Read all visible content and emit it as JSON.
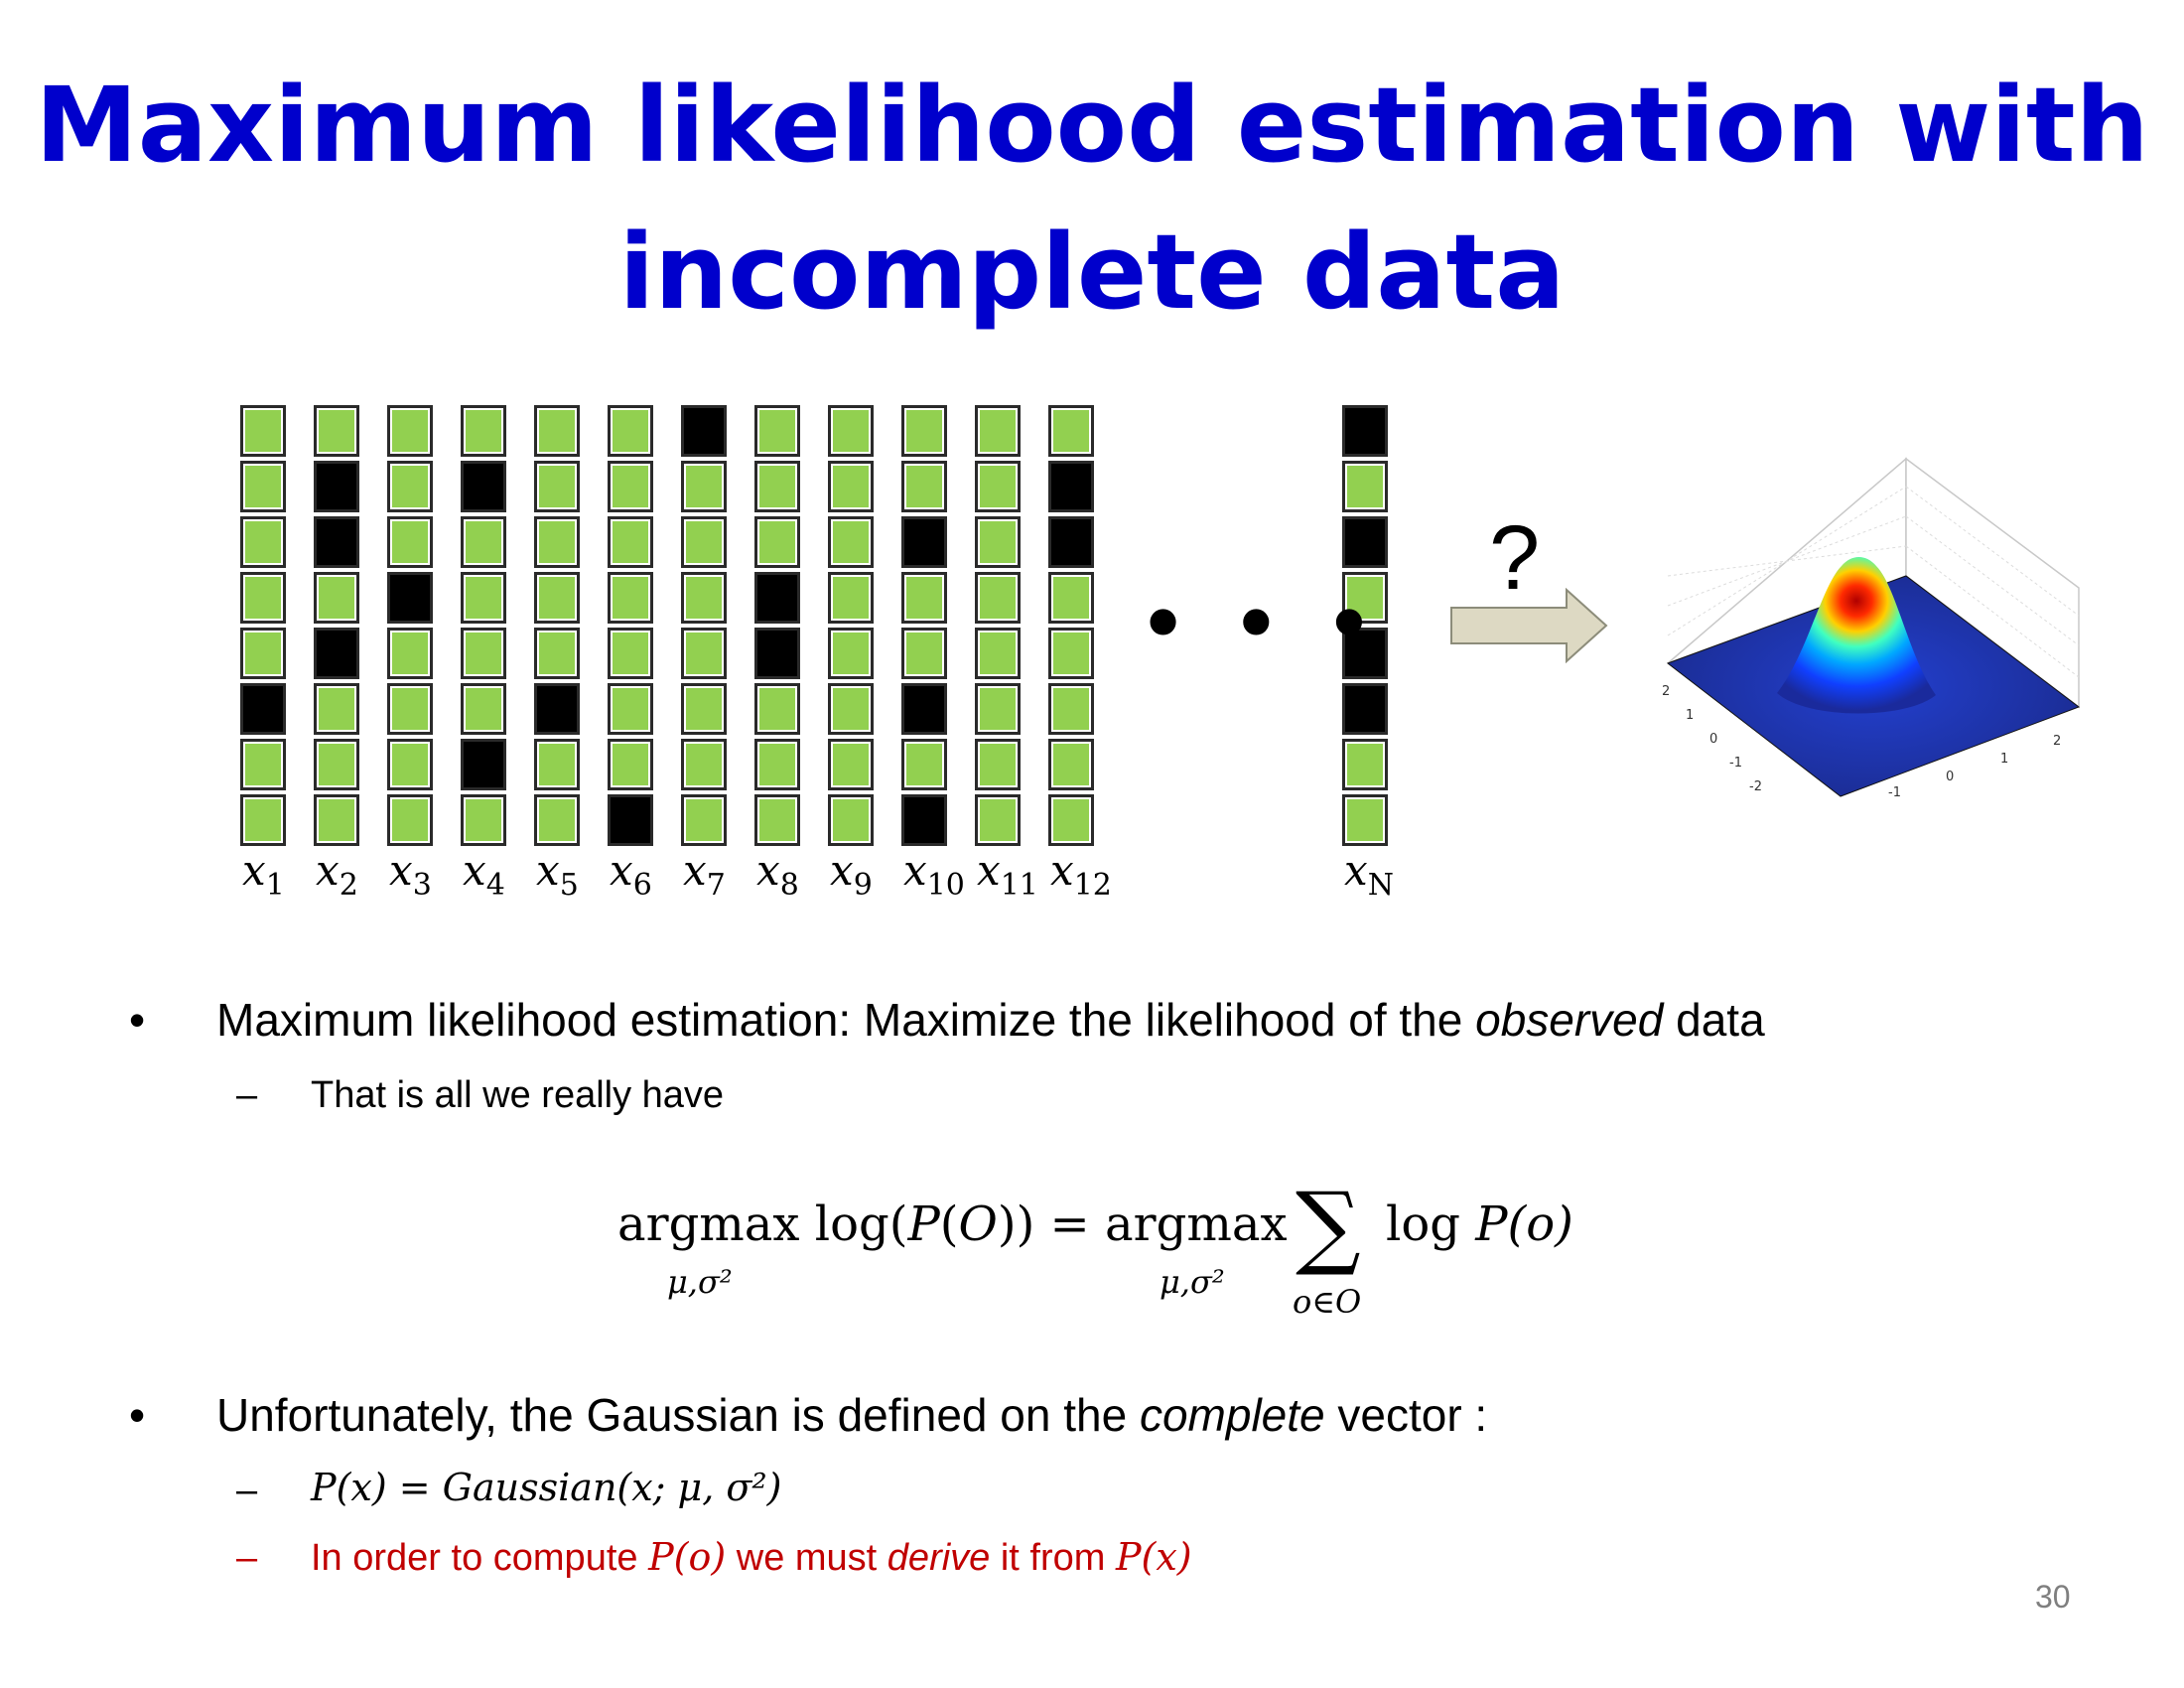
{
  "slide": {
    "title_line1": "Maximum likelihood estimation with",
    "title_line2": "incomplete data",
    "page_number": "30"
  },
  "figure": {
    "colors": {
      "observed": "#92d050",
      "missing": "#000000"
    },
    "vectors": [
      {
        "label_var": "x",
        "label_sub": "1",
        "cells": [
          1,
          1,
          1,
          1,
          1,
          0,
          1,
          1
        ]
      },
      {
        "label_var": "x",
        "label_sub": "2",
        "cells": [
          1,
          0,
          0,
          1,
          0,
          1,
          1,
          1
        ]
      },
      {
        "label_var": "x",
        "label_sub": "3",
        "cells": [
          1,
          1,
          1,
          0,
          1,
          1,
          1,
          1
        ]
      },
      {
        "label_var": "x",
        "label_sub": "4",
        "cells": [
          1,
          0,
          1,
          1,
          1,
          1,
          0,
          1
        ]
      },
      {
        "label_var": "x",
        "label_sub": "5",
        "cells": [
          1,
          1,
          1,
          1,
          1,
          0,
          1,
          1
        ]
      },
      {
        "label_var": "x",
        "label_sub": "6",
        "cells": [
          1,
          1,
          1,
          1,
          1,
          1,
          1,
          0
        ]
      },
      {
        "label_var": "x",
        "label_sub": "7",
        "cells": [
          0,
          1,
          1,
          1,
          1,
          1,
          1,
          1
        ]
      },
      {
        "label_var": "x",
        "label_sub": "8",
        "cells": [
          1,
          1,
          1,
          0,
          0,
          1,
          1,
          1
        ]
      },
      {
        "label_var": "x",
        "label_sub": "9",
        "cells": [
          1,
          1,
          1,
          1,
          1,
          1,
          1,
          1
        ]
      },
      {
        "label_var": "x",
        "label_sub": "10",
        "cells": [
          1,
          1,
          0,
          1,
          1,
          0,
          1,
          0
        ]
      },
      {
        "label_var": "x",
        "label_sub": "11",
        "cells": [
          1,
          1,
          1,
          1,
          1,
          1,
          1,
          1
        ]
      },
      {
        "label_var": "x",
        "label_sub": "12",
        "cells": [
          1,
          0,
          0,
          1,
          1,
          1,
          1,
          1
        ]
      }
    ],
    "last_vector": {
      "label_var": "x",
      "label_sub": "N",
      "cells": [
        0,
        1,
        0,
        1,
        0,
        0,
        1,
        1
      ]
    },
    "ellipsis": "• • •",
    "question_mark": "?",
    "surface_x_ticks": [
      "-2",
      "-1",
      "0",
      "1",
      "2"
    ],
    "surface_y_ticks": [
      "-2",
      "-1",
      "0",
      "1",
      "2"
    ]
  },
  "bullets": {
    "b1_marker": "•",
    "b1_part1": "Maximum likelihood estimation: Maximize the likelihood of the ",
    "b1_emph": "observed",
    "b1_part2": " data",
    "s1_marker": "–",
    "s1_text": "That is all we really have",
    "eq_lhs": "argmax log(",
    "eq_lhs_var": "P",
    "eq_lhs_paren": "(",
    "eq_lhs_arg": "O",
    "eq_lhs_close": ")) = argmax",
    "eq_sub1": "μ,σ²",
    "eq_sub2": "μ,σ²",
    "eq_sum": "∑",
    "eq_sum_sub": "o∈O",
    "eq_rhs": "log ",
    "eq_rhs_var": "P",
    "eq_rhs_arg": "(o)",
    "b2_marker": "•",
    "b2_part1": "Unfortunately, the Gaussian is defined on the ",
    "b2_emph": "complete",
    "b2_part2": " vector :",
    "s2_marker": "–",
    "s2_text": "P(x) = Gaussian(x; μ, σ²)",
    "s3_marker": "–",
    "s3_part1": "In order to compute ",
    "s3_math1": "P(o)",
    "s3_part2": " we must ",
    "s3_emph": "derive",
    "s3_part3": " it from ",
    "s3_math2": "P(x)"
  }
}
